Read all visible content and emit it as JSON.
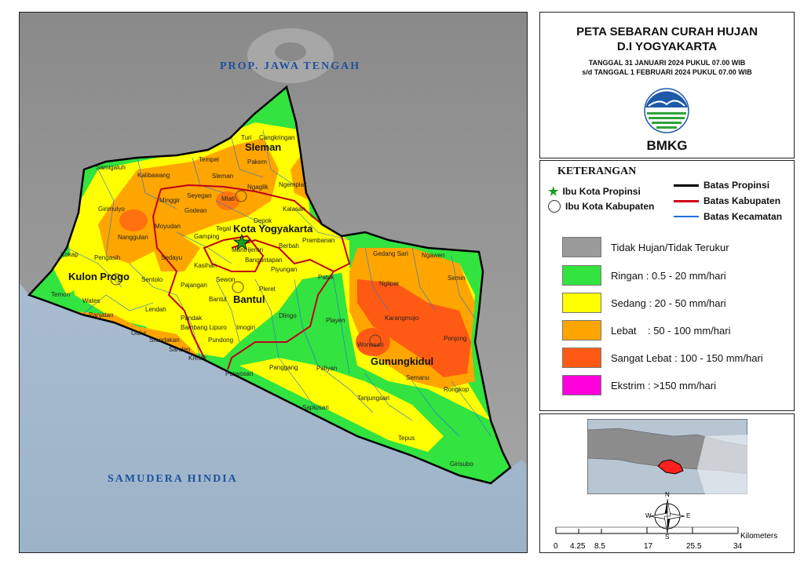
{
  "title": {
    "line1": "PETA SEBARAN CURAH HUJAN",
    "line2": "D.I YOGYAKARTA",
    "date1": "TANGGAL 31 JANUARI 2024 PUKUL 07.00 WIB",
    "date2": "s/d TANGGAL 1 FEBRUARI 2024 PUKUL 07.00 WIB",
    "agency": "BMKG"
  },
  "legend": {
    "heading": "KETERANGAN",
    "symbols": {
      "capital_province": "Ibu Kota Propinsi",
      "capital_regency": "Ibu Kota Kabupaten",
      "province_border": "Batas Propinsi",
      "regency_border": "Batas Kabupaten",
      "district_border": "Batas Kecamatan"
    },
    "classes": [
      {
        "label": "Tidak Hujan/Tidak Terukur",
        "color": "#9a9a9a"
      },
      {
        "label": "Ringan : 0.5 - 20 mm/hari",
        "color": "#33e33f"
      },
      {
        "label": "Sedang : 20 - 50 mm/hari",
        "color": "#ffff00"
      },
      {
        "label": "Lebat    : 50 - 100 mm/hari",
        "color": "#ffa500"
      },
      {
        "label": "Sangat Lebat : 100 - 150 mm/hari",
        "color": "#ff5a14"
      },
      {
        "label": "Ekstrim : >150 mm/hari",
        "color": "#ff00dc"
      }
    ]
  },
  "map": {
    "region_labels": {
      "north": "PROP. JAWA TENGAH",
      "south": "SAMUDERA HINDIA"
    },
    "regencies": [
      "Sleman",
      "Kota Yogyakarta",
      "Kulon Progo",
      "Bantul",
      "Gunungkidul"
    ],
    "districts": [
      "Turi",
      "Cangkringan",
      "Tempel",
      "Pakem",
      "Samigaluh",
      "Kalibawang",
      "Sleman",
      "Ngaglik",
      "Ngemplak",
      "Minggir",
      "Seyegan",
      "Mlati",
      "Girimulyo",
      "Godean",
      "Kalasan",
      "Moyudan",
      "Tegal",
      "Depok",
      "Nanggulan",
      "Gamping",
      "Berbah",
      "Prambanan",
      "Kokap",
      "Pengasih",
      "Sedayu",
      "Kasihan",
      "Mantrijeron",
      "Banguntapan",
      "Gedang Sari",
      "Ngawen",
      "Sentolo",
      "Sewon",
      "Piyungan",
      "Patuk",
      "Nglipar",
      "Semin",
      "Temon",
      "Wates",
      "Pajangan",
      "Bantul",
      "Pleret",
      "Panjatan",
      "Lendah",
      "Dlingo",
      "Playen",
      "Karangmojo",
      "Galur",
      "Pandak",
      "Bambang Lipuro",
      "Imogiri",
      "Ponjong",
      "Srandakan",
      "Sanden",
      "Pundong",
      "Wonosari",
      "Kretek",
      "Panggang",
      "Paliyan",
      "Semanu",
      "Purwosari",
      "Tanjungsari",
      "Saptosari",
      "Rongkop",
      "Tepus",
      "Girisubo"
    ],
    "scalebar": {
      "unit": "Kilometers",
      "ticks": [
        "0",
        "4.25",
        "8.5",
        "17",
        "25.5",
        "34"
      ]
    },
    "north_arrow": {
      "n": "N",
      "s": "S",
      "e": "E",
      "w": "W"
    }
  }
}
